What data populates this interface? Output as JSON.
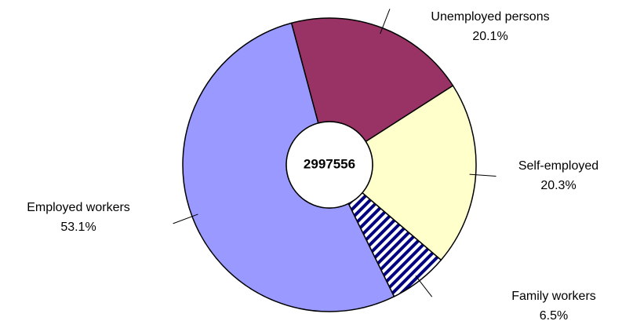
{
  "chart_data": {
    "type": "donut",
    "center_label": 2997556,
    "categories": [
      "Unemployed persons",
      "Self-employed",
      "Family workers",
      "Employed workers"
    ],
    "values": [
      20.1,
      20.3,
      6.5,
      53.1
    ],
    "value_labels": [
      "20.1%",
      "20.3%",
      "6.5%",
      "53.1%"
    ],
    "colors": [
      "#993366",
      "#ffffcc",
      "#000080",
      "#9999ff"
    ],
    "patterns": [
      null,
      null,
      "stripes",
      null
    ]
  }
}
